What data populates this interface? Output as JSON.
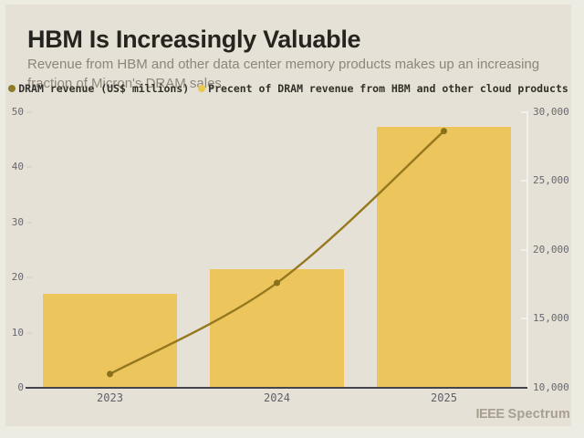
{
  "chart_data": {
    "type": "bar+line",
    "title": "HBM Is Increasingly Valuable",
    "subtitle": "Revenue from HBM and other data center memory products makes up an increasing fraction of Micron's DRAM sales.",
    "categories": [
      "2023",
      "2024",
      "2025"
    ],
    "series": [
      {
        "name": "DRAM revenue (US$ millions)",
        "type": "line",
        "axis": "right",
        "color": "#96781f",
        "dot_color": "#8a701c",
        "values": [
          11000,
          17600,
          28600
        ]
      },
      {
        "name": "Precent of DRAM revenue from HBM and other cloud products",
        "type": "bar",
        "axis": "left",
        "color": "#ecc55c",
        "values": [
          17,
          21.5,
          47.3
        ]
      }
    ],
    "left_axis": {
      "range": [
        0,
        50
      ],
      "ticks": [
        {
          "label": "0",
          "value": 0
        },
        {
          "label": "10",
          "value": 10
        },
        {
          "label": "20",
          "value": 20
        },
        {
          "label": "30",
          "value": 30
        },
        {
          "label": "40",
          "value": 40
        },
        {
          "label": "50",
          "value": 50
        }
      ]
    },
    "right_axis": {
      "range": [
        10000,
        30000
      ],
      "ticks": [
        {
          "label": "10,000",
          "value": 10000
        },
        {
          "label": "15,000",
          "value": 15000
        },
        {
          "label": "20,000",
          "value": 20000
        },
        {
          "label": "25,000",
          "value": 25000
        },
        {
          "label": "30,000",
          "value": 30000
        }
      ]
    },
    "grid": false,
    "legend_position": "top"
  },
  "legend": [
    {
      "label": "DRAM revenue (US$ millions)",
      "color": "#8e7c28"
    },
    {
      "label": "Precent of DRAM revenue from HBM and other cloud products",
      "color": "#e9c84f"
    }
  ],
  "brand": {
    "ieee": "IEEE",
    "spectrum": "Spectrum"
  },
  "colors": {
    "page_background": "#edece3",
    "card_background": "#e6e1d6",
    "bar": "#ecc55c",
    "line": "#96781f",
    "title_text": "#26241e",
    "subtitle_text": "#8d8779",
    "axis_text": "#686870",
    "baseline": "#45444d",
    "brand_text": "#a79f91"
  }
}
